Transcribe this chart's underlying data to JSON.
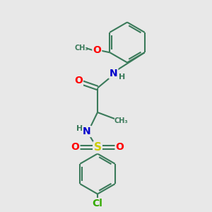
{
  "background_color": "#e8e8e8",
  "bond_color": "#3a7a5a",
  "bond_width": 1.5,
  "atom_colors": {
    "O": "#ff0000",
    "N": "#0000cc",
    "S": "#cccc00",
    "Cl": "#33aa00",
    "C": "#3a7a5a",
    "H": "#3a7a5a"
  },
  "font_size": 9
}
